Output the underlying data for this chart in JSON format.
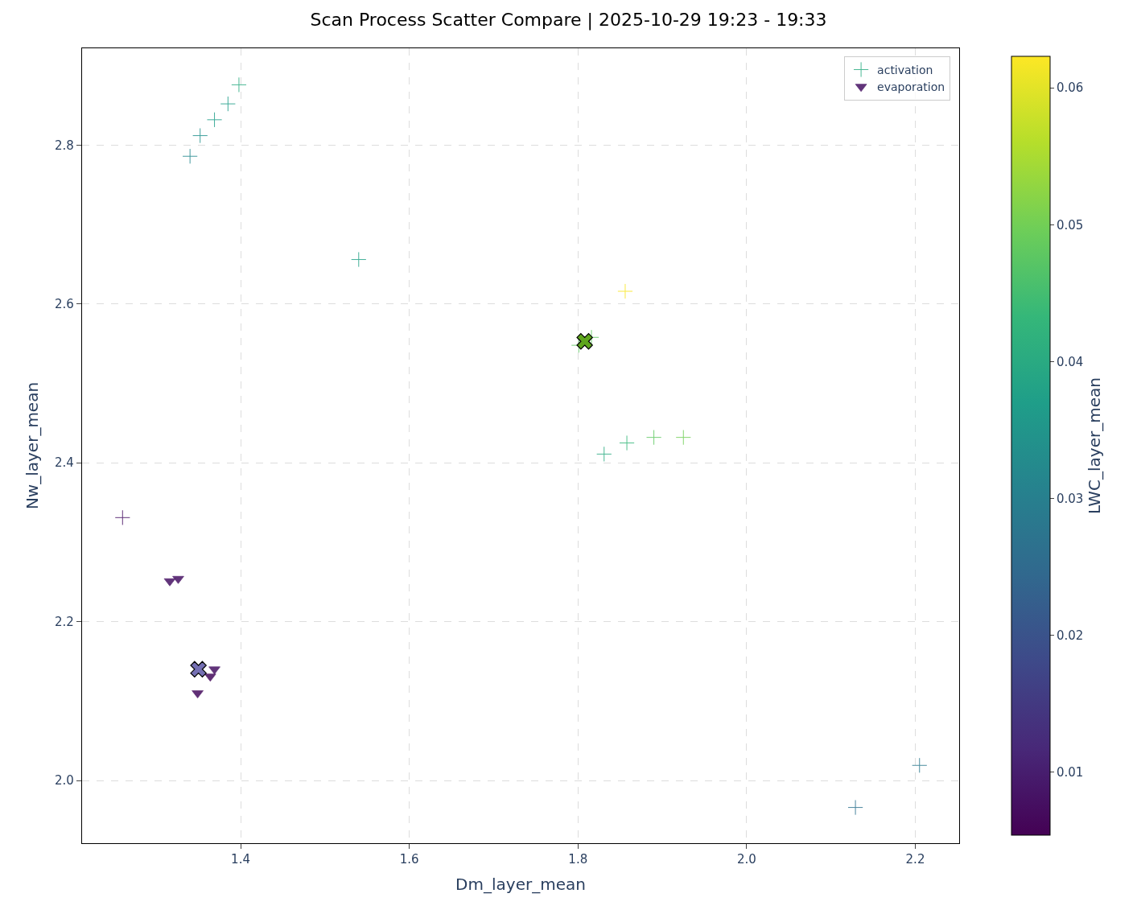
{
  "chart_data": {
    "type": "scatter",
    "title": "Scan Process Scatter Compare | 2025-10-29 19:23 - 19:33",
    "xlabel": "Dm_layer_mean",
    "ylabel": "Nw_layer_mean",
    "clabel": "LWC_layer_mean",
    "xlim": [
      1.212,
      2.252
    ],
    "ylim": [
      1.921,
      2.922
    ],
    "xticks": [
      1.4,
      1.6,
      1.8,
      {
        "value": 2,
        "label": "2.0"
      },
      2.2
    ],
    "yticks": [
      {
        "value": 2,
        "label": "2.0"
      },
      2.2,
      2.4,
      2.6,
      2.8
    ],
    "clim": [
      0.0054,
      0.0623
    ],
    "cticks": [
      0.01,
      0.02,
      0.03,
      0.04,
      0.05,
      0.06
    ],
    "grid": true,
    "legend": "top right",
    "series": [
      {
        "name": "activation",
        "marker": "cross",
        "x": [
          1.398,
          1.385,
          1.369,
          1.352,
          1.34,
          1.54,
          1.856,
          1.801,
          1.816,
          1.831,
          1.858,
          1.89,
          1.925,
          1.26,
          2.129,
          2.205
        ],
        "values": [
          2.876,
          2.852,
          2.832,
          2.812,
          2.786,
          2.656,
          2.616,
          2.548,
          2.558,
          2.411,
          2.425,
          2.432,
          2.432,
          2.331,
          1.966,
          2.019
        ],
        "cvalues": [
          0.04,
          0.037,
          0.037,
          0.035,
          0.032,
          0.038,
          0.062,
          0.048,
          0.048,
          0.04,
          0.043,
          0.048,
          0.05,
          0.008,
          0.026,
          0.028
        ],
        "colors": [
          "#2aab81",
          "#1f9e89",
          "#1f9e89",
          "#21918c",
          "#23888e",
          "#22a187",
          "#f8e621",
          "#5ec962",
          "#5ec962",
          "#2aab81",
          "#34b679",
          "#5ec962",
          "#71ce56",
          "#471164",
          "#2d718e",
          "#2b788e"
        ]
      },
      {
        "name": "evaporation",
        "marker": "triangle",
        "x": [
          1.316,
          1.326,
          1.369,
          1.364,
          1.349
        ],
        "values": [
          2.251,
          2.254,
          2.14,
          2.131,
          2.11
        ],
        "cvalues": [
          0.008,
          0.008,
          0.008,
          0.007,
          0.007
        ],
        "colors": [
          "#471164",
          "#471164",
          "#471164",
          "#460b5e",
          "#460b5e"
        ]
      },
      {
        "color": "#5ea51d",
        "marker": "x",
        "x": [
          1.808
        ],
        "values": [
          2.553
        ]
      },
      {
        "color": "#7570b3",
        "marker": "x",
        "x": [
          1.35
        ],
        "values": [
          2.14
        ]
      }
    ]
  }
}
